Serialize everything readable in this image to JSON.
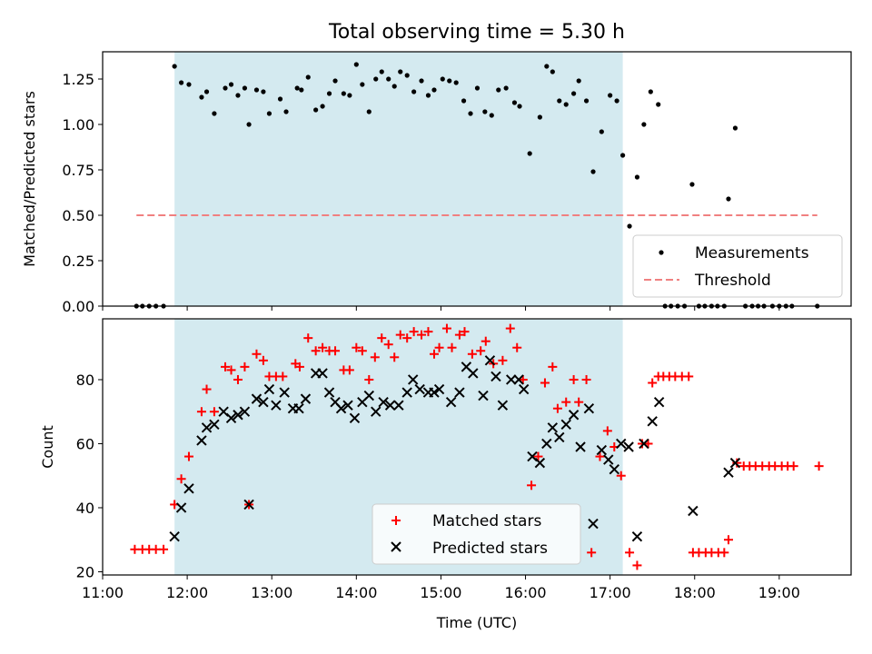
{
  "chart_data": [
    {
      "type": "scatter",
      "title": "Total observing time = 5.30 h",
      "ylabel": "Matched/Predicted stars",
      "xlabel": "",
      "xlim": [
        11.0,
        19.85
      ],
      "ylim": [
        0.0,
        1.4
      ],
      "yticks": [
        "0.00",
        "0.25",
        "0.50",
        "0.75",
        "1.00",
        "1.25"
      ],
      "observing_window": [
        11.85,
        17.15
      ],
      "window_color": "#d4eaf0",
      "legend_position": "lower-right",
      "series": [
        {
          "name": "Measurements",
          "marker": "dot",
          "color": "#000000",
          "points": [
            [
              11.4,
              0
            ],
            [
              11.47,
              0
            ],
            [
              11.55,
              0
            ],
            [
              11.63,
              0
            ],
            [
              11.72,
              0
            ],
            [
              11.85,
              1.32
            ],
            [
              11.93,
              1.23
            ],
            [
              12.02,
              1.22
            ],
            [
              12.17,
              1.15
            ],
            [
              12.23,
              1.18
            ],
            [
              12.32,
              1.06
            ],
            [
              12.45,
              1.2
            ],
            [
              12.52,
              1.22
            ],
            [
              12.6,
              1.16
            ],
            [
              12.68,
              1.2
            ],
            [
              12.73,
              1.0
            ],
            [
              12.82,
              1.19
            ],
            [
              12.9,
              1.18
            ],
            [
              12.97,
              1.06
            ],
            [
              13.1,
              1.14
            ],
            [
              13.17,
              1.07
            ],
            [
              13.3,
              1.2
            ],
            [
              13.35,
              1.19
            ],
            [
              13.43,
              1.26
            ],
            [
              13.52,
              1.08
            ],
            [
              13.6,
              1.1
            ],
            [
              13.68,
              1.17
            ],
            [
              13.75,
              1.24
            ],
            [
              13.85,
              1.17
            ],
            [
              13.92,
              1.16
            ],
            [
              14.0,
              1.33
            ],
            [
              14.07,
              1.22
            ],
            [
              14.15,
              1.07
            ],
            [
              14.23,
              1.25
            ],
            [
              14.3,
              1.29
            ],
            [
              14.38,
              1.25
            ],
            [
              14.45,
              1.21
            ],
            [
              14.52,
              1.29
            ],
            [
              14.6,
              1.27
            ],
            [
              14.68,
              1.18
            ],
            [
              14.77,
              1.24
            ],
            [
              14.85,
              1.16
            ],
            [
              14.92,
              1.19
            ],
            [
              15.02,
              1.25
            ],
            [
              15.1,
              1.24
            ],
            [
              15.18,
              1.23
            ],
            [
              15.27,
              1.13
            ],
            [
              15.35,
              1.06
            ],
            [
              15.43,
              1.2
            ],
            [
              15.52,
              1.07
            ],
            [
              15.6,
              1.05
            ],
            [
              15.68,
              1.19
            ],
            [
              15.77,
              1.2
            ],
            [
              15.87,
              1.12
            ],
            [
              15.93,
              1.1
            ],
            [
              16.05,
              0.84
            ],
            [
              16.17,
              1.04
            ],
            [
              16.25,
              1.32
            ],
            [
              16.32,
              1.29
            ],
            [
              16.4,
              1.13
            ],
            [
              16.48,
              1.11
            ],
            [
              16.57,
              1.17
            ],
            [
              16.63,
              1.24
            ],
            [
              16.72,
              1.13
            ],
            [
              16.8,
              0.74
            ],
            [
              16.9,
              0.96
            ],
            [
              17.0,
              1.16
            ],
            [
              17.08,
              1.13
            ],
            [
              17.15,
              0.83
            ],
            [
              17.23,
              0.44
            ],
            [
              17.32,
              0.71
            ],
            [
              17.4,
              1.0
            ],
            [
              17.48,
              1.18
            ],
            [
              17.57,
              1.11
            ],
            [
              17.65,
              0
            ],
            [
              17.72,
              0
            ],
            [
              17.8,
              0
            ],
            [
              17.88,
              0
            ],
            [
              17.97,
              0.67
            ],
            [
              18.05,
              0
            ],
            [
              18.12,
              0
            ],
            [
              18.2,
              0
            ],
            [
              18.27,
              0
            ],
            [
              18.35,
              0
            ],
            [
              18.4,
              0.59
            ],
            [
              18.48,
              0.98
            ],
            [
              18.6,
              0
            ],
            [
              18.68,
              0
            ],
            [
              18.75,
              0
            ],
            [
              18.82,
              0
            ],
            [
              18.92,
              0
            ],
            [
              19.0,
              0
            ],
            [
              19.08,
              0
            ],
            [
              19.15,
              0
            ],
            [
              19.45,
              0
            ]
          ]
        },
        {
          "name": "Threshold",
          "marker": "dashed-line",
          "color": "#f08080",
          "points": [
            [
              11.4,
              0.5
            ],
            [
              19.45,
              0.5
            ]
          ]
        }
      ]
    },
    {
      "type": "scatter",
      "title": "",
      "ylabel": "Count",
      "xlabel": "Time (UTC)",
      "xlim": [
        11.0,
        19.85
      ],
      "ylim": [
        19.0,
        99.0
      ],
      "yticks": [
        "20",
        "40",
        "60",
        "80"
      ],
      "xticks": [
        "11:00",
        "12:00",
        "13:00",
        "14:00",
        "15:00",
        "16:00",
        "17:00",
        "18:00",
        "19:00"
      ],
      "observing_window": [
        11.85,
        17.15
      ],
      "window_color": "#d4eaf0",
      "legend_position": "lower-center",
      "series": [
        {
          "name": "Matched stars",
          "marker": "plus",
          "color": "#ff0000",
          "points": [
            [
              11.38,
              27
            ],
            [
              11.47,
              27
            ],
            [
              11.55,
              27
            ],
            [
              11.63,
              27
            ],
            [
              11.72,
              27
            ],
            [
              11.85,
              41
            ],
            [
              11.93,
              49
            ],
            [
              12.02,
              56
            ],
            [
              12.17,
              70
            ],
            [
              12.23,
              77
            ],
            [
              12.32,
              70
            ],
            [
              12.45,
              84
            ],
            [
              12.52,
              83
            ],
            [
              12.6,
              80
            ],
            [
              12.68,
              84
            ],
            [
              12.73,
              41
            ],
            [
              12.82,
              88
            ],
            [
              12.9,
              86
            ],
            [
              12.97,
              81
            ],
            [
              13.05,
              81
            ],
            [
              13.13,
              81
            ],
            [
              13.28,
              85
            ],
            [
              13.33,
              84
            ],
            [
              13.43,
              93
            ],
            [
              13.52,
              89
            ],
            [
              13.6,
              90
            ],
            [
              13.68,
              89
            ],
            [
              13.75,
              89
            ],
            [
              13.85,
              83
            ],
            [
              13.92,
              83
            ],
            [
              14.0,
              90
            ],
            [
              14.07,
              89
            ],
            [
              14.15,
              80
            ],
            [
              14.22,
              87
            ],
            [
              14.3,
              93
            ],
            [
              14.38,
              91
            ],
            [
              14.45,
              87
            ],
            [
              14.52,
              94
            ],
            [
              14.6,
              93
            ],
            [
              14.68,
              95
            ],
            [
              14.77,
              94
            ],
            [
              14.85,
              95
            ],
            [
              14.92,
              88
            ],
            [
              14.98,
              90
            ],
            [
              15.07,
              96
            ],
            [
              15.13,
              90
            ],
            [
              15.22,
              94
            ],
            [
              15.28,
              95
            ],
            [
              15.37,
              88
            ],
            [
              15.47,
              89
            ],
            [
              15.53,
              92
            ],
            [
              15.62,
              85
            ],
            [
              15.73,
              86
            ],
            [
              15.82,
              96
            ],
            [
              15.9,
              90
            ],
            [
              15.97,
              80
            ],
            [
              16.07,
              47
            ],
            [
              16.15,
              56
            ],
            [
              16.23,
              79
            ],
            [
              16.32,
              84
            ],
            [
              16.38,
              71
            ],
            [
              16.48,
              73
            ],
            [
              16.57,
              80
            ],
            [
              16.63,
              73
            ],
            [
              16.72,
              80
            ],
            [
              16.78,
              26
            ],
            [
              16.88,
              56
            ],
            [
              16.97,
              64
            ],
            [
              17.05,
              59
            ],
            [
              17.13,
              50
            ],
            [
              17.23,
              26
            ],
            [
              17.32,
              22
            ],
            [
              17.38,
              60
            ],
            [
              17.45,
              60
            ],
            [
              17.5,
              79
            ],
            [
              17.57,
              81
            ],
            [
              17.63,
              81
            ],
            [
              17.7,
              81
            ],
            [
              17.77,
              81
            ],
            [
              17.85,
              81
            ],
            [
              17.93,
              81
            ],
            [
              17.98,
              26
            ],
            [
              18.05,
              26
            ],
            [
              18.13,
              26
            ],
            [
              18.2,
              26
            ],
            [
              18.28,
              26
            ],
            [
              18.35,
              26
            ],
            [
              18.4,
              30
            ],
            [
              18.5,
              54
            ],
            [
              18.58,
              53
            ],
            [
              18.65,
              53
            ],
            [
              18.72,
              53
            ],
            [
              18.8,
              53
            ],
            [
              18.88,
              53
            ],
            [
              18.95,
              53
            ],
            [
              19.03,
              53
            ],
            [
              19.1,
              53
            ],
            [
              19.17,
              53
            ],
            [
              19.47,
              53
            ]
          ]
        },
        {
          "name": "Predicted stars",
          "marker": "x",
          "color": "#000000",
          "points": [
            [
              11.85,
              31
            ],
            [
              11.93,
              40
            ],
            [
              12.02,
              46
            ],
            [
              12.17,
              61
            ],
            [
              12.23,
              65
            ],
            [
              12.32,
              66
            ],
            [
              12.43,
              70
            ],
            [
              12.52,
              68
            ],
            [
              12.6,
              69
            ],
            [
              12.68,
              70
            ],
            [
              12.73,
              41
            ],
            [
              12.82,
              74
            ],
            [
              12.9,
              73
            ],
            [
              12.97,
              77
            ],
            [
              13.05,
              72
            ],
            [
              13.15,
              76
            ],
            [
              13.25,
              71
            ],
            [
              13.32,
              71
            ],
            [
              13.4,
              74
            ],
            [
              13.52,
              82
            ],
            [
              13.6,
              82
            ],
            [
              13.68,
              76
            ],
            [
              13.75,
              73
            ],
            [
              13.82,
              71
            ],
            [
              13.9,
              72
            ],
            [
              13.98,
              68
            ],
            [
              14.07,
              73
            ],
            [
              14.15,
              75
            ],
            [
              14.23,
              70
            ],
            [
              14.32,
              73
            ],
            [
              14.4,
              72
            ],
            [
              14.5,
              72
            ],
            [
              14.6,
              76
            ],
            [
              14.67,
              80
            ],
            [
              14.75,
              77
            ],
            [
              14.85,
              76
            ],
            [
              14.92,
              76
            ],
            [
              14.98,
              77
            ],
            [
              15.12,
              73
            ],
            [
              15.22,
              76
            ],
            [
              15.3,
              84
            ],
            [
              15.38,
              82
            ],
            [
              15.5,
              75
            ],
            [
              15.58,
              86
            ],
            [
              15.65,
              81
            ],
            [
              15.73,
              72
            ],
            [
              15.83,
              80
            ],
            [
              15.92,
              80
            ],
            [
              15.98,
              77
            ],
            [
              16.08,
              56
            ],
            [
              16.17,
              54
            ],
            [
              16.25,
              60
            ],
            [
              16.32,
              65
            ],
            [
              16.4,
              62
            ],
            [
              16.48,
              66
            ],
            [
              16.57,
              69
            ],
            [
              16.65,
              59
            ],
            [
              16.75,
              71
            ],
            [
              16.8,
              35
            ],
            [
              16.9,
              58
            ],
            [
              16.98,
              55
            ],
            [
              17.05,
              52
            ],
            [
              17.13,
              60
            ],
            [
              17.22,
              59
            ],
            [
              17.32,
              31
            ],
            [
              17.4,
              60
            ],
            [
              17.5,
              67
            ],
            [
              17.58,
              73
            ],
            [
              17.98,
              39
            ],
            [
              18.4,
              51
            ],
            [
              18.48,
              54
            ]
          ]
        }
      ]
    }
  ]
}
